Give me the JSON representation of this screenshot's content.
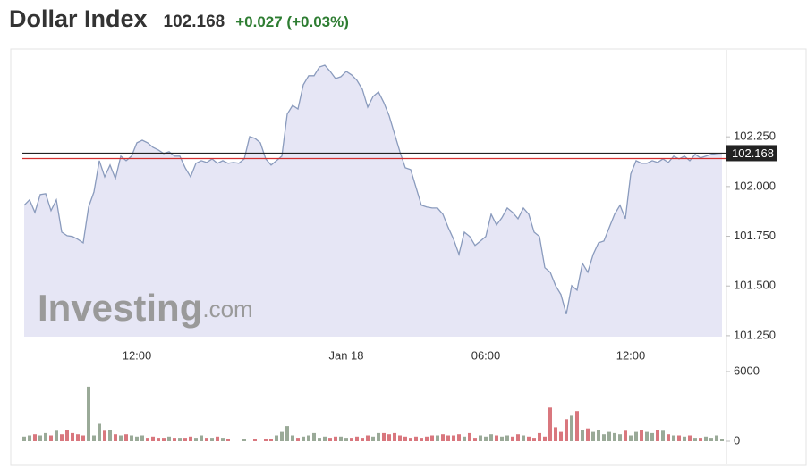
{
  "header": {
    "title": "Dollar Index",
    "price": "102.168",
    "change": "+0.027 (+0.03%)"
  },
  "watermark": {
    "brand": "Investing",
    "suffix": ".com"
  },
  "chart_data": [
    {
      "type": "area",
      "color": "#8a9bbd",
      "fill": "#e6e6f5",
      "last": {
        "value": 102.168,
        "label": "102.168"
      },
      "last_color": "#222",
      "previous_close": 102.141,
      "previous_close_color": "#d32f2f",
      "categories": [
        null,
        null,
        null,
        null,
        null,
        null,
        null,
        null,
        null,
        null,
        null,
        null,
        null,
        null,
        null,
        null,
        null,
        null,
        null,
        null,
        null,
        "12:00",
        null,
        null,
        null,
        null,
        null,
        null,
        null,
        null,
        null,
        null,
        null,
        null,
        null,
        null,
        null,
        null,
        null,
        null,
        null,
        null,
        null,
        null,
        null,
        null,
        null,
        null,
        null,
        null,
        null,
        null,
        null,
        null,
        null,
        null,
        null,
        null,
        null,
        null,
        "Jan 18",
        null,
        null,
        null,
        null,
        null,
        null,
        null,
        null,
        null,
        null,
        null,
        null,
        null,
        null,
        null,
        null,
        null,
        null,
        null,
        null,
        null,
        null,
        null,
        null,
        null,
        "06:00",
        null,
        null,
        null,
        null,
        null,
        null,
        null,
        null,
        null,
        null,
        null,
        null,
        null,
        null,
        null,
        null,
        null,
        null,
        null,
        null,
        null,
        null,
        null,
        null,
        null,
        null,
        "12:00",
        null,
        null,
        null,
        null,
        null,
        null,
        null,
        null,
        null,
        null,
        null,
        null,
        null,
        null,
        null,
        null,
        null
      ],
      "values": [
        101.906,
        101.933,
        101.87,
        101.96,
        101.964,
        101.879,
        101.933,
        101.771,
        101.753,
        101.749,
        101.735,
        101.717,
        101.897,
        101.973,
        102.13,
        102.049,
        102.108,
        102.04,
        102.153,
        102.13,
        102.153,
        102.22,
        102.233,
        102.22,
        102.197,
        102.184,
        102.166,
        102.175,
        102.153,
        102.153,
        102.094,
        102.049,
        102.117,
        102.13,
        102.121,
        102.139,
        102.117,
        102.13,
        102.117,
        102.121,
        102.117,
        102.139,
        102.251,
        102.242,
        102.22,
        102.139,
        102.108,
        102.13,
        102.153,
        102.364,
        102.408,
        102.39,
        102.512,
        102.557,
        102.557,
        102.601,
        102.61,
        102.579,
        102.543,
        102.552,
        102.579,
        102.561,
        102.534,
        102.489,
        102.399,
        102.453,
        102.476,
        102.422,
        102.355,
        102.265,
        102.175,
        102.094,
        102.085,
        101.996,
        101.906,
        101.897,
        101.892,
        101.892,
        101.861,
        101.794,
        101.735,
        101.659,
        101.771,
        101.749,
        101.704,
        101.726,
        101.749,
        101.861,
        101.807,
        101.843,
        101.892,
        101.87,
        101.838,
        101.892,
        101.861,
        101.771,
        101.749,
        101.592,
        101.569,
        101.502,
        101.457,
        101.358,
        101.502,
        101.479,
        101.614,
        101.569,
        101.659,
        101.717,
        101.726,
        101.794,
        101.861,
        101.906,
        101.838,
        102.063,
        102.13,
        102.117,
        102.117,
        102.13,
        102.121,
        102.139,
        102.121,
        102.153,
        102.139,
        102.153,
        102.13,
        102.162,
        102.144,
        102.153,
        102.162,
        102.166,
        102.168
      ],
      "ylim": [
        101.245,
        102.682
      ],
      "yticks": [
        {
          "value": 101.25,
          "label": "101.250"
        },
        {
          "value": 101.5,
          "label": "101.500"
        },
        {
          "value": 101.75,
          "label": "101.750"
        },
        {
          "value": 102.0,
          "label": "102.000"
        },
        {
          "value": 102.25,
          "label": "102.250"
        }
      ]
    },
    {
      "type": "bar",
      "up_color": "#9aaa98",
      "down_color": "#d9777e",
      "values": [
        400,
        500,
        600,
        500,
        700,
        500,
        900,
        600,
        1000,
        700,
        600,
        500,
        4700,
        500,
        1500,
        900,
        1000,
        600,
        500,
        600,
        500,
        400,
        500,
        300,
        400,
        300,
        300,
        400,
        300,
        300,
        300,
        400,
        300,
        500,
        300,
        300,
        400,
        300,
        200,
        null,
        null,
        200,
        null,
        200,
        null,
        200,
        200,
        500,
        800,
        1300,
        500,
        300,
        400,
        500,
        700,
        300,
        400,
        300,
        400,
        400,
        300,
        300,
        400,
        300,
        500,
        400,
        700,
        700,
        600,
        700,
        500,
        400,
        300,
        400,
        300,
        400,
        500,
        500,
        600,
        500,
        500,
        600,
        400,
        700,
        300,
        500,
        400,
        600,
        500,
        400,
        500,
        400,
        600,
        500,
        400,
        300,
        700,
        400,
        2900,
        1200,
        800,
        1900,
        2200,
        2600,
        1000,
        1100,
        800,
        1000,
        600,
        800,
        700,
        600,
        900,
        500,
        800,
        1000,
        800,
        700,
        1000,
        900,
        600,
        500,
        500,
        400,
        500,
        300,
        300,
        400,
        300,
        500,
        200
      ],
      "ylim": [
        0,
        6000
      ],
      "yticks": [
        0,
        6000
      ]
    }
  ]
}
